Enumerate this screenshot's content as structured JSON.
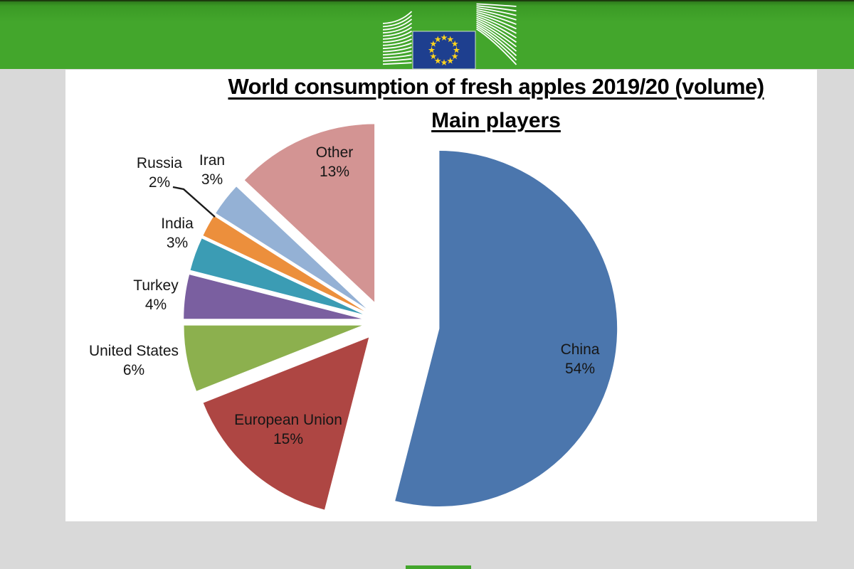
{
  "page": {
    "background_color": "#d9d9d9"
  },
  "header": {
    "background_color": "#43a62c",
    "logo_name": "european-commission-logo",
    "flag_field_color": "#1e3f8f",
    "flag_star_color": "#ffd41e",
    "flag_star_count": 12
  },
  "chart_data": {
    "type": "pie",
    "title": "World consumption of fresh apples 2019/20 (volume)",
    "subtitle": "Main players",
    "unit": "%",
    "start_angle_deg": 0,
    "direction": "clockwise",
    "legend": "none",
    "label_style": "category name + percentage, exploded wedges",
    "slices": [
      {
        "label": "China",
        "value": 54,
        "pct_text": "54%",
        "color": "#4b76ad",
        "explode": 80
      },
      {
        "label": "European Union",
        "value": 15,
        "pct_text": "15%",
        "color": "#ae4643",
        "explode": 30
      },
      {
        "label": "United States",
        "value": 6,
        "pct_text": "6%",
        "color": "#8cb04e",
        "explode": 30
      },
      {
        "label": "Turkey",
        "value": 4,
        "pct_text": "4%",
        "color": "#7a5fa0",
        "explode": 30
      },
      {
        "label": "India",
        "value": 3,
        "pct_text": "3%",
        "color": "#3b9cb4",
        "explode": 30
      },
      {
        "label": "Russia",
        "value": 2,
        "pct_text": "2%",
        "color": "#ec8f3c",
        "explode": 30
      },
      {
        "label": "Iran",
        "value": 3,
        "pct_text": "3%",
        "color": "#94b1d5",
        "explode": 30
      },
      {
        "label": "Other",
        "value": 13,
        "pct_text": "13%",
        "color": "#d39493",
        "explode": 30
      }
    ]
  },
  "footer": {
    "partial_next_logo_color": "#43a62c"
  }
}
